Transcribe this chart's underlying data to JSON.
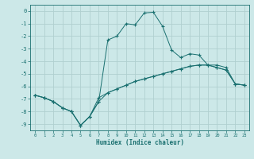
{
  "bg_color": "#cce8e8",
  "line_color": "#1a7070",
  "grid_color": "#b0d0d0",
  "xlabel": "Humidex (Indice chaleur)",
  "xlim": [
    -0.5,
    23.5
  ],
  "ylim": [
    -9.5,
    0.5
  ],
  "xticks": [
    0,
    1,
    2,
    3,
    4,
    5,
    6,
    7,
    8,
    9,
    10,
    11,
    12,
    13,
    14,
    15,
    16,
    17,
    18,
    19,
    20,
    21,
    22,
    23
  ],
  "yticks": [
    0,
    -1,
    -2,
    -3,
    -4,
    -5,
    -6,
    -7,
    -8,
    -9
  ],
  "line1_x": [
    0,
    1,
    2,
    3,
    4,
    5,
    6,
    7,
    8,
    9,
    10,
    11,
    12,
    13,
    14,
    15,
    16,
    17,
    18,
    19,
    20,
    21,
    22,
    23
  ],
  "line1_y": [
    -6.7,
    -6.9,
    -7.2,
    -7.7,
    -8.0,
    -9.1,
    -8.4,
    -6.9,
    -6.5,
    -6.2,
    -5.9,
    -5.6,
    -5.4,
    -5.2,
    -5.0,
    -4.8,
    -4.6,
    -4.4,
    -4.3,
    -4.3,
    -4.5,
    -4.7,
    -5.8,
    -5.9
  ],
  "line2_x": [
    0,
    1,
    2,
    3,
    4,
    5,
    6,
    7,
    8,
    9,
    10,
    11,
    12,
    13,
    14,
    15,
    16,
    17,
    18,
    19,
    20,
    21,
    22,
    23
  ],
  "line2_y": [
    -6.7,
    -6.9,
    -7.2,
    -7.7,
    -8.0,
    -9.1,
    -8.4,
    -7.2,
    -2.3,
    -2.0,
    -1.0,
    -1.1,
    -0.15,
    -0.1,
    -1.2,
    -3.1,
    -3.7,
    -3.4,
    -3.5,
    -4.3,
    -4.5,
    -4.7,
    -5.8,
    -5.9
  ],
  "line3_x": [
    0,
    1,
    2,
    3,
    4,
    5,
    6,
    7,
    8,
    9,
    10,
    11,
    12,
    13,
    14,
    15,
    16,
    17,
    18,
    19,
    20,
    21,
    22,
    23
  ],
  "line3_y": [
    -6.7,
    -6.9,
    -7.2,
    -7.7,
    -8.0,
    -9.1,
    -8.4,
    -7.2,
    -6.5,
    -6.2,
    -5.9,
    -5.6,
    -5.4,
    -5.2,
    -5.0,
    -4.8,
    -4.6,
    -4.4,
    -4.3,
    -4.3,
    -4.3,
    -4.5,
    -5.8,
    -5.9
  ]
}
